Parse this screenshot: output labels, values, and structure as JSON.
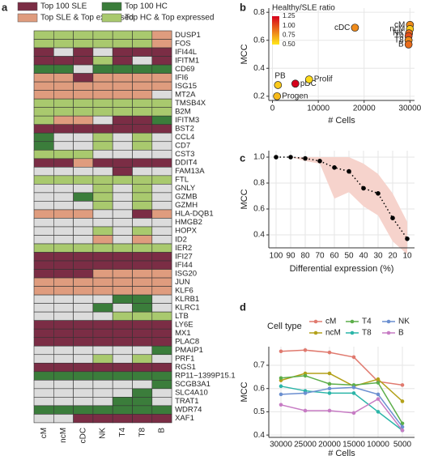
{
  "chart_data": [
    {
      "type": "heatmap",
      "panel_label": "a",
      "legend": [
        {
          "name": "Top 100 SLE",
          "color": "#7b2d45"
        },
        {
          "name": "Top 100 HC",
          "color": "#3b7d3b"
        },
        {
          "name": "Top SLE & Top expressed",
          "color": "#df9c7e"
        },
        {
          "name": "Top HC & Top expressed",
          "color": "#a9c96e"
        }
      ],
      "empty_color": "#dcdcdc",
      "columns": [
        "cM",
        "ncM",
        "cDC",
        "NK",
        "T4",
        "T8",
        "B"
      ],
      "rows": [
        "DUSP1",
        "FOS",
        "IFI44L",
        "IFITM1",
        "CD69",
        "IFI6",
        "ISG15",
        "MT2A",
        "TMSB4X",
        "B2M",
        "IFITM3",
        "BST2",
        "CCL4",
        "CD7",
        "CST3",
        "DDIT4",
        "FAM13A",
        "FTL",
        "GNLY",
        "GZMB",
        "GZMH",
        "HLA-DQB1",
        "HMGB2",
        "HOPX",
        "ID2",
        "IER2",
        "IFI27",
        "IFI44",
        "ISG20",
        "JUN",
        "KLF6",
        "KLRB1",
        "KLRC1",
        "LTB",
        "LY6E",
        "MX1",
        "PLAC8",
        "PMAIP1",
        "PRF1",
        "RGS1",
        "RP11−1399P15.1",
        "SCGB3A1",
        "SLC4A10",
        "TRAT1",
        "WDR74",
        "XAF1"
      ],
      "values": [
        [
          4,
          4,
          4,
          4,
          4,
          4,
          3
        ],
        [
          4,
          4,
          4,
          4,
          4,
          4,
          3
        ],
        [
          1,
          0,
          1,
          0,
          1,
          1,
          1
        ],
        [
          1,
          1,
          1,
          4,
          1,
          0,
          1
        ],
        [
          2,
          2,
          0,
          2,
          2,
          2,
          2
        ],
        [
          3,
          3,
          1,
          3,
          3,
          3,
          3
        ],
        [
          3,
          3,
          3,
          3,
          3,
          3,
          3
        ],
        [
          3,
          3,
          3,
          3,
          3,
          3,
          0
        ],
        [
          4,
          4,
          4,
          4,
          4,
          4,
          4
        ],
        [
          4,
          4,
          4,
          4,
          4,
          4,
          4
        ],
        [
          4,
          3,
          3,
          0,
          1,
          1,
          2
        ],
        [
          1,
          1,
          1,
          1,
          1,
          1,
          1
        ],
        [
          2,
          0,
          0,
          4,
          0,
          4,
          0
        ],
        [
          2,
          0,
          0,
          4,
          0,
          4,
          0
        ],
        [
          4,
          4,
          4,
          0,
          0,
          0,
          0
        ],
        [
          1,
          1,
          3,
          1,
          1,
          1,
          1
        ],
        [
          0,
          0,
          0,
          0,
          1,
          0,
          0
        ],
        [
          4,
          4,
          4,
          4,
          4,
          4,
          4
        ],
        [
          0,
          0,
          0,
          4,
          0,
          4,
          0
        ],
        [
          0,
          0,
          2,
          4,
          0,
          4,
          0
        ],
        [
          0,
          0,
          0,
          4,
          0,
          4,
          0
        ],
        [
          3,
          3,
          3,
          0,
          0,
          1,
          3
        ],
        [
          0,
          0,
          0,
          0,
          0,
          0,
          0
        ],
        [
          0,
          0,
          0,
          4,
          0,
          4,
          0
        ],
        [
          0,
          0,
          0,
          3,
          0,
          3,
          0
        ],
        [
          4,
          4,
          4,
          4,
          4,
          4,
          4
        ],
        [
          1,
          1,
          1,
          1,
          1,
          1,
          1
        ],
        [
          1,
          1,
          1,
          1,
          1,
          1,
          1
        ],
        [
          1,
          1,
          1,
          3,
          3,
          3,
          3
        ],
        [
          3,
          3,
          3,
          3,
          3,
          3,
          3
        ],
        [
          3,
          3,
          3,
          3,
          3,
          3,
          3
        ],
        [
          0,
          0,
          0,
          0,
          2,
          2,
          0
        ],
        [
          0,
          0,
          0,
          2,
          0,
          2,
          0
        ],
        [
          0,
          0,
          0,
          0,
          4,
          4,
          4
        ],
        [
          1,
          1,
          1,
          1,
          1,
          1,
          1
        ],
        [
          1,
          1,
          1,
          1,
          1,
          1,
          1
        ],
        [
          1,
          1,
          1,
          1,
          1,
          1,
          1
        ],
        [
          0,
          0,
          0,
          0,
          0,
          0,
          2
        ],
        [
          0,
          0,
          0,
          4,
          0,
          4,
          0
        ],
        [
          1,
          1,
          1,
          1,
          1,
          1,
          1
        ],
        [
          2,
          2,
          2,
          2,
          2,
          2,
          2
        ],
        [
          0,
          0,
          0,
          0,
          0,
          0,
          2
        ],
        [
          0,
          0,
          0,
          0,
          0,
          2,
          0
        ],
        [
          0,
          0,
          0,
          0,
          2,
          2,
          0
        ],
        [
          2,
          2,
          2,
          2,
          2,
          2,
          2
        ],
        [
          0,
          0,
          1,
          1,
          1,
          1,
          1
        ]
      ]
    },
    {
      "type": "scatter",
      "panel_label": "b",
      "xlabel": "# Cells",
      "ylabel": "MCC",
      "labels": [
        "cM",
        "ncM",
        "NK",
        "T4",
        "T8",
        "B",
        "cDC",
        "pDC",
        "PB",
        "Prolif",
        "Progen"
      ],
      "x": [
        30000,
        30000,
        29800,
        29700,
        29700,
        29700,
        18000,
        5000,
        1200,
        8000,
        1000
      ],
      "y": [
        0.71,
        0.68,
        0.65,
        0.63,
        0.6,
        0.57,
        0.69,
        0.29,
        0.28,
        0.32,
        0.2
      ],
      "ratio": [
        0.8,
        0.6,
        0.9,
        1.0,
        0.8,
        0.9,
        0.8,
        1.25,
        0.6,
        0.55,
        0.65
      ],
      "xlim": [
        -800,
        31000
      ],
      "xticks": [
        0,
        10000,
        20000,
        30000
      ],
      "ylim": [
        0.17,
        0.83
      ],
      "yticks": [
        0.2,
        0.4,
        0.6,
        0.8
      ],
      "colorbar": {
        "title": "Healthy/SLE ratio",
        "lim": [
          0.5,
          1.25
        ],
        "colors": [
          "#ffe81a",
          "#d6001c"
        ],
        "ticks": [
          {
            "value": 1.25,
            "label": "1.25"
          },
          {
            "value": 1,
            "label": "1.00"
          },
          {
            "value": 0.75,
            "label": "0.75"
          },
          {
            "value": 0.5,
            "label": "0.50"
          }
        ]
      }
    },
    {
      "type": "ribbon-line",
      "panel_label": "c",
      "xlabel": "Differential expression (%)",
      "ylabel": "MCC",
      "categories": [
        "100",
        "90",
        "80",
        "70",
        "60",
        "50",
        "40",
        "30",
        "20",
        "10"
      ],
      "values": [
        1.0,
        1.0,
        0.99,
        0.97,
        0.92,
        0.89,
        0.76,
        0.72,
        0.53,
        0.37
      ],
      "lower": [
        1.0,
        1.0,
        0.97,
        0.95,
        0.68,
        0.73,
        0.62,
        0.55,
        0.35,
        0.25
      ],
      "upper": [
        1.0,
        1.0,
        1.0,
        1.0,
        1.0,
        1.0,
        0.95,
        0.87,
        0.72,
        0.5
      ],
      "color": "#000000",
      "ribbon_color": "#f6d3cc",
      "ylim": [
        0.3,
        1.05
      ],
      "yticks": [
        0.4,
        0.6,
        0.8,
        {
          "value": 1,
          "label": "1.0"
        }
      ]
    },
    {
      "type": "multi-line",
      "panel_label": "d",
      "xlabel": "# Cells",
      "ylabel": "MCC",
      "legend_title": "Cell type",
      "categories": [
        "30000",
        "25000",
        "20000",
        "15000",
        "10000",
        "5000"
      ],
      "series": [
        {
          "name": "cM",
          "color": "#e07a6f",
          "values": [
            0.76,
            0.765,
            0.755,
            0.735,
            0.63,
            0.615
          ]
        },
        {
          "name": "ncM",
          "color": "#b3a11a",
          "values": [
            0.635,
            0.665,
            0.665,
            0.61,
            0.64,
            0.545
          ]
        },
        {
          "name": "T4",
          "color": "#5cae4a",
          "values": [
            0.645,
            0.655,
            0.62,
            0.615,
            0.625,
            0.45
          ]
        },
        {
          "name": "T8",
          "color": "#2bb5a8",
          "values": [
            0.61,
            0.59,
            0.58,
            0.58,
            0.5,
            0.42
          ]
        },
        {
          "name": "NK",
          "color": "#6b8fd0",
          "values": [
            0.575,
            0.58,
            0.6,
            0.605,
            0.575,
            0.435
          ]
        },
        {
          "name": "B",
          "color": "#c77cc4",
          "values": [
            0.53,
            0.505,
            0.505,
            0.495,
            0.555,
            0.42
          ]
        }
      ],
      "ylim": [
        0.39,
        0.78
      ],
      "yticks": [
        0.4,
        0.5,
        0.6,
        0.7
      ]
    }
  ]
}
